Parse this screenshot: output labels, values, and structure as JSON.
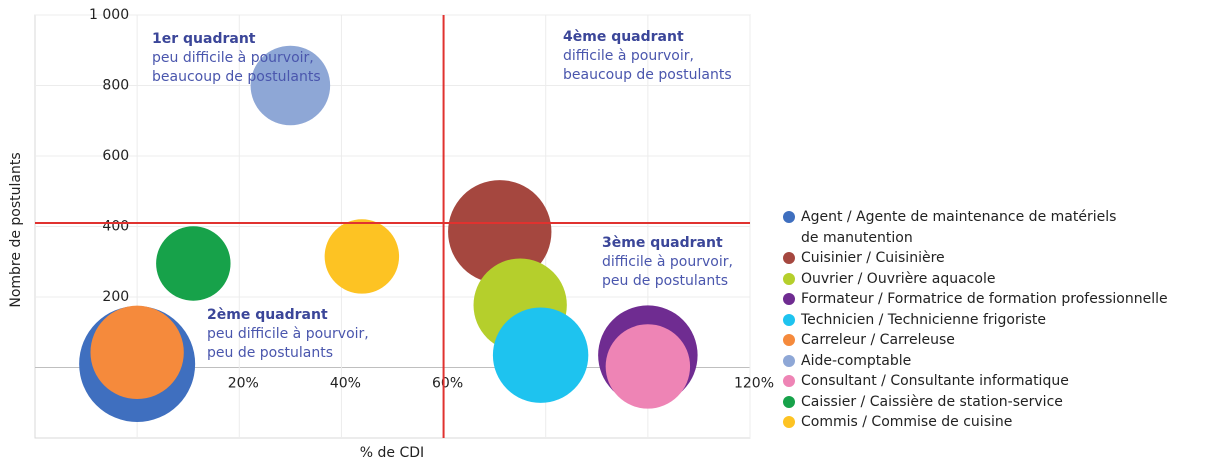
{
  "chart_data": {
    "type": "bubble",
    "xlabel": "% de CDI",
    "ylabel": "Nombre de postulants",
    "xlim": [
      -20,
      120
    ],
    "ylim": [
      -200,
      1000
    ],
    "xticks": [
      {
        "value": 0,
        "label": "0%"
      },
      {
        "value": 20,
        "label": "20%"
      },
      {
        "value": 40,
        "label": "40%"
      },
      {
        "value": 60,
        "label": "60%"
      },
      {
        "value": 80,
        "label": "80%"
      },
      {
        "value": 100,
        "label": "100%"
      },
      {
        "value": 120,
        "label": "120%"
      }
    ],
    "yticks": [
      0,
      200,
      400,
      600,
      800,
      {
        "value": 1000,
        "label": "1 000"
      }
    ],
    "grid": true,
    "legend": "right",
    "reference_lines": {
      "x": 60,
      "y": 410,
      "color": "#e0322f"
    },
    "annotations": [
      {
        "title": "1er quadrant",
        "lines": [
          "peu difficile à pourvoir,",
          "beaucoup de postulants"
        ]
      },
      {
        "title": "4ème quadrant",
        "lines": [
          "difficile à pourvoir,",
          "beaucoup de postulants"
        ]
      },
      {
        "title": "3ème quadrant",
        "lines": [
          "difficile à pourvoir,",
          "peu de postulants"
        ]
      },
      {
        "title": "2ème quadrant",
        "lines": [
          "peu difficile à pourvoir,",
          "peu de postulants"
        ]
      }
    ],
    "series": [
      {
        "name": "Agent / Agente de maintenance de matériels\nde manutention",
        "color": "#3f6fbf",
        "x": 0,
        "y": 10,
        "size": 34
      },
      {
        "name": "Cuisinier / Cuisinière",
        "color": "#a5473f",
        "x": 71,
        "y": 385,
        "size": 27
      },
      {
        "name": "Ouvrier / Ouvrière aquacole",
        "color": "#b5cf2c",
        "x": 75,
        "y": 177,
        "size": 22
      },
      {
        "name": "Formateur / Formatrice de formation professionnelle",
        "color": "#6f2c91",
        "x": 100,
        "y": 35,
        "size": 25
      },
      {
        "name": "Technicien / Technicienne frigoriste",
        "color": "#1ec3ef",
        "x": 79,
        "y": 35,
        "size": 23
      },
      {
        "name": "Carreleur / Carreleuse",
        "color": "#f58a3c",
        "x": 0,
        "y": 43,
        "size": 22
      },
      {
        "name": "Aide-comptable",
        "color": "#8ea7d6",
        "x": 30,
        "y": 800,
        "size": 16
      },
      {
        "name": "Consultant / Consultante informatique",
        "color": "#ee84b5",
        "x": 100,
        "y": 3,
        "size": 18
      },
      {
        "name": "Caissier / Caissière de station-service",
        "color": "#17a24a",
        "x": 11,
        "y": 295,
        "size": 14
      },
      {
        "name": "Commis / Commise de cuisine",
        "color": "#fdc323",
        "x": 44,
        "y": 315,
        "size": 14
      }
    ]
  }
}
